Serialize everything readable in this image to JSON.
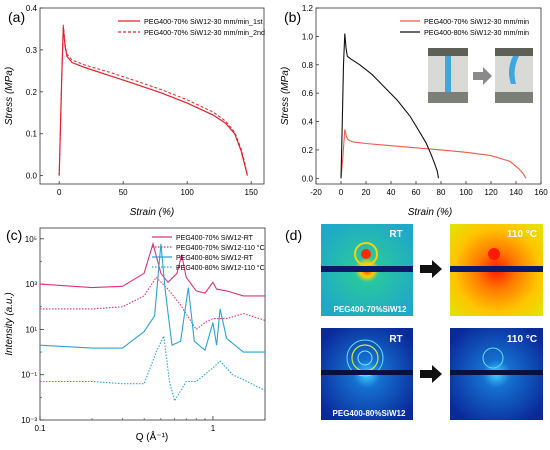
{
  "chart_data": [
    {
      "panel": "(a)",
      "type": "line",
      "xlabel": "Strain (%)",
      "ylabel": "Stress (MPa)",
      "xlim": [
        -15,
        160
      ],
      "ylim": [
        -0.02,
        0.4
      ],
      "xticks": [
        0,
        50,
        100,
        150
      ],
      "yticks": [
        0.0,
        0.1,
        0.2,
        0.3,
        0.4
      ],
      "legend_position": "top-right",
      "series": [
        {
          "name": "PEG400-70% SiW12-30 mm/min_1st",
          "color": "#e8202a",
          "style": "solid",
          "points": [
            [
              0,
              0
            ],
            [
              1,
              0.12
            ],
            [
              2,
              0.24
            ],
            [
              3.2,
              0.355
            ],
            [
              4.5,
              0.31
            ],
            [
              6,
              0.285
            ],
            [
              10,
              0.27
            ],
            [
              20,
              0.258
            ],
            [
              40,
              0.238
            ],
            [
              60,
              0.218
            ],
            [
              80,
              0.197
            ],
            [
              100,
              0.173
            ],
            [
              120,
              0.145
            ],
            [
              130,
              0.125
            ],
            [
              137,
              0.1
            ],
            [
              142,
              0.06
            ],
            [
              145,
              0.025
            ],
            [
              147,
              0
            ]
          ]
        },
        {
          "name": "PEG400-70% SiW12-30 mm/min_2nd",
          "color": "#e8202a",
          "style": "dashed",
          "points": [
            [
              0,
              0
            ],
            [
              1,
              0.12
            ],
            [
              2,
              0.24
            ],
            [
              3.2,
              0.36
            ],
            [
              4.5,
              0.315
            ],
            [
              6,
              0.29
            ],
            [
              10,
              0.276
            ],
            [
              20,
              0.264
            ],
            [
              40,
              0.246
            ],
            [
              60,
              0.226
            ],
            [
              80,
              0.205
            ],
            [
              100,
              0.181
            ],
            [
              120,
              0.152
            ],
            [
              130,
              0.13
            ],
            [
              137,
              0.104
            ],
            [
              142,
              0.065
            ],
            [
              145,
              0.03
            ],
            [
              147,
              0
            ]
          ]
        }
      ]
    },
    {
      "panel": "(b)",
      "type": "line",
      "xlabel": "Strain (%)",
      "ylabel": "Stress (MPa)",
      "xlim": [
        -20,
        160
      ],
      "ylim": [
        -0.04,
        1.2
      ],
      "xticks": [
        -20,
        0,
        20,
        40,
        60,
        80,
        100,
        120,
        140,
        160
      ],
      "yticks": [
        0.0,
        0.2,
        0.4,
        0.6,
        0.8,
        1.0,
        1.2
      ],
      "legend_position": "top-right",
      "series": [
        {
          "name": "PEG400-70% SiW12-30 mm/min",
          "color": "#f25a4a",
          "style": "solid",
          "points": [
            [
              0,
              0
            ],
            [
              1.5,
              0.15
            ],
            [
              3,
              0.345
            ],
            [
              4.5,
              0.29
            ],
            [
              6,
              0.27
            ],
            [
              10,
              0.255
            ],
            [
              20,
              0.245
            ],
            [
              40,
              0.23
            ],
            [
              60,
              0.215
            ],
            [
              80,
              0.2
            ],
            [
              100,
              0.183
            ],
            [
              120,
              0.16
            ],
            [
              135,
              0.12
            ],
            [
              142,
              0.07
            ],
            [
              146,
              0.03
            ],
            [
              148,
              0
            ]
          ]
        },
        {
          "name": "PEG400-80% SiW12-30 mm/min",
          "color": "#111111",
          "style": "solid",
          "points": [
            [
              0,
              0
            ],
            [
              1,
              0.4
            ],
            [
              2,
              0.8
            ],
            [
              3,
              1.02
            ],
            [
              4,
              0.92
            ],
            [
              5,
              0.86
            ],
            [
              8,
              0.84
            ],
            [
              15,
              0.8
            ],
            [
              25,
              0.73
            ],
            [
              35,
              0.64
            ],
            [
              45,
              0.55
            ],
            [
              55,
              0.44
            ],
            [
              62,
              0.34
            ],
            [
              68,
              0.25
            ],
            [
              72,
              0.17
            ],
            [
              75,
              0.1
            ],
            [
              77,
              0.05
            ],
            [
              78,
              0
            ]
          ]
        }
      ]
    },
    {
      "panel": "(c)",
      "type": "line",
      "xlabel": "Q (Å⁻¹)",
      "ylabel": "Intensity (a.u.)",
      "xscale": "log",
      "yscale": "log",
      "xlim": [
        0.1,
        2.0
      ],
      "ylim": [
        0.001,
        300000
      ],
      "xtick_labels": [
        "0.1",
        "1"
      ],
      "ytick_labels": [
        "10⁻³",
        "10⁻¹",
        "10¹",
        "10³",
        "10⁵"
      ],
      "legend_position": "top-right",
      "series": [
        {
          "name": "PEG400-70% SiW12-RT",
          "color": "#e0307a",
          "style": "solid",
          "points": [
            [
              0.1,
              1000
            ],
            [
              0.2,
              700
            ],
            [
              0.3,
              800
            ],
            [
              0.4,
              3000
            ],
            [
              0.45,
              60000
            ],
            [
              0.5,
              3000
            ],
            [
              0.55,
              1200
            ],
            [
              0.62,
              3000
            ],
            [
              0.66,
              20000
            ],
            [
              0.7,
              2000
            ],
            [
              0.8,
              500
            ],
            [
              0.9,
              400
            ],
            [
              1.0,
              1200
            ],
            [
              1.05,
              600
            ],
            [
              1.2,
              500
            ],
            [
              1.5,
              300
            ],
            [
              2.0,
              300
            ]
          ]
        },
        {
          "name": "PEG400-70% SiW12-110 °C",
          "color": "#e0307a",
          "style": "dotted",
          "points": [
            [
              0.1,
              80
            ],
            [
              0.2,
              80
            ],
            [
              0.3,
              100
            ],
            [
              0.4,
              300
            ],
            [
              0.47,
              2000
            ],
            [
              0.55,
              600
            ],
            [
              0.65,
              120
            ],
            [
              0.8,
              10
            ],
            [
              0.9,
              20
            ],
            [
              1.0,
              30
            ],
            [
              1.2,
              30
            ],
            [
              1.5,
              50
            ],
            [
              2.0,
              25
            ]
          ]
        },
        {
          "name": "PEG400-80% SiW12-RT",
          "color": "#2aa3d8",
          "style": "solid",
          "points": [
            [
              0.1,
              2
            ],
            [
              0.2,
              1.5
            ],
            [
              0.3,
              1.5
            ],
            [
              0.4,
              8
            ],
            [
              0.46,
              40
            ],
            [
              0.5,
              60000
            ],
            [
              0.53,
              500
            ],
            [
              0.58,
              2
            ],
            [
              0.65,
              3
            ],
            [
              0.72,
              700
            ],
            [
              0.78,
              3
            ],
            [
              0.9,
              1.2
            ],
            [
              1.0,
              20
            ],
            [
              1.05,
              2
            ],
            [
              1.1,
              80
            ],
            [
              1.2,
              4
            ],
            [
              1.5,
              1
            ],
            [
              2.0,
              1
            ]
          ]
        },
        {
          "name": "PEG400-80% SiW12-110 °C",
          "color": "#2aa3d8",
          "style": "dotted",
          "points": [
            [
              0.1,
              0.05
            ],
            [
              0.2,
              0.05
            ],
            [
              0.3,
              0.04
            ],
            [
              0.4,
              0.04
            ],
            [
              0.47,
              1
            ],
            [
              0.52,
              5
            ],
            [
              0.56,
              0.05
            ],
            [
              0.6,
              0.007
            ],
            [
              0.7,
              0.05
            ],
            [
              0.8,
              0.05
            ],
            [
              1.0,
              0.2
            ],
            [
              1.1,
              0.4
            ],
            [
              1.3,
              0.1
            ],
            [
              1.5,
              0.06
            ],
            [
              2.0,
              0.02
            ]
          ]
        }
      ]
    }
  ],
  "panels": {
    "a": {
      "label": "(a)"
    },
    "b": {
      "label": "(b)"
    },
    "c": {
      "label": "(c)"
    },
    "d": {
      "label": "(d)"
    }
  },
  "saxs_images": {
    "top_left": {
      "tag": "RT",
      "caption": "PEG400-70%SiW12",
      "caption_sub": "12",
      "palette": "warm"
    },
    "top_right": {
      "tag": "110 °C",
      "palette": "hot"
    },
    "bottom_left": {
      "tag": "RT",
      "caption": "PEG400-80%SiW12",
      "caption_sub": "12",
      "palette": "cool"
    },
    "bottom_right": {
      "tag": "110 °C",
      "palette": "cool"
    }
  },
  "colors": {
    "red": "#e8202a",
    "orange_red": "#f25a4a",
    "black": "#111111",
    "pink": "#e0307a",
    "cyan": "#2aa3d8"
  }
}
